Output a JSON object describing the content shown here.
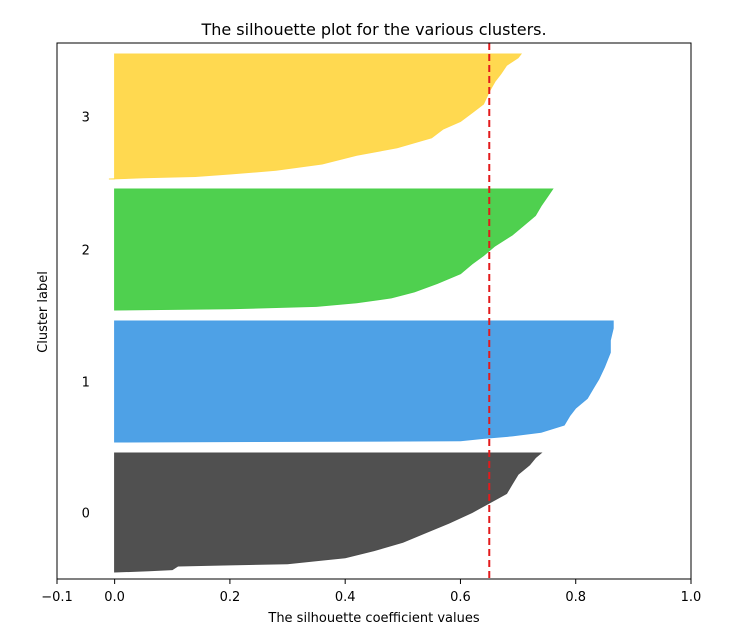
{
  "chart_data": {
    "type": "area",
    "title": "The silhouette plot for the various clusters.",
    "xlabel": "The silhouette coefficient values",
    "ylabel": "Cluster label",
    "xlim": [
      -0.1,
      1.0
    ],
    "xticks": [
      -0.1,
      0.0,
      0.2,
      0.4,
      0.6,
      0.8,
      1.0
    ],
    "xtick_labels": [
      "−0.1",
      "0.0",
      "0.2",
      "0.4",
      "0.6",
      "0.8",
      "1.0"
    ],
    "average_silhouette_score": 0.65,
    "average_line_color": "#e31a1c",
    "grid": false,
    "clusters": [
      {
        "label": "0",
        "color": "#4d4d4d",
        "profile": [
          [
            0.0,
            0.0
          ],
          [
            0.06,
            0.01
          ],
          [
            0.1,
            0.02
          ],
          [
            0.11,
            0.05
          ],
          [
            0.2,
            0.06
          ],
          [
            0.3,
            0.07
          ],
          [
            0.36,
            0.1
          ],
          [
            0.4,
            0.12
          ],
          [
            0.45,
            0.18
          ],
          [
            0.5,
            0.25
          ],
          [
            0.54,
            0.33
          ],
          [
            0.58,
            0.41
          ],
          [
            0.62,
            0.5
          ],
          [
            0.65,
            0.58
          ],
          [
            0.68,
            0.66
          ],
          [
            0.69,
            0.74
          ],
          [
            0.7,
            0.82
          ],
          [
            0.72,
            0.9
          ],
          [
            0.73,
            0.96
          ],
          [
            0.74,
            1.0
          ]
        ]
      },
      {
        "label": "1",
        "color": "#4a9fe6",
        "profile": [
          [
            0.0,
            0.0
          ],
          [
            0.6,
            0.01
          ],
          [
            0.64,
            0.03
          ],
          [
            0.69,
            0.05
          ],
          [
            0.74,
            0.08
          ],
          [
            0.78,
            0.14
          ],
          [
            0.79,
            0.22
          ],
          [
            0.8,
            0.28
          ],
          [
            0.82,
            0.36
          ],
          [
            0.83,
            0.44
          ],
          [
            0.84,
            0.52
          ],
          [
            0.85,
            0.62
          ],
          [
            0.86,
            0.74
          ],
          [
            0.86,
            0.84
          ],
          [
            0.865,
            0.94
          ],
          [
            0.865,
            1.0
          ]
        ]
      },
      {
        "label": "2",
        "color": "#4bcf4b",
        "profile": [
          [
            0.0,
            0.0
          ],
          [
            0.2,
            0.01
          ],
          [
            0.35,
            0.03
          ],
          [
            0.42,
            0.06
          ],
          [
            0.48,
            0.1
          ],
          [
            0.52,
            0.15
          ],
          [
            0.56,
            0.22
          ],
          [
            0.6,
            0.3
          ],
          [
            0.62,
            0.38
          ],
          [
            0.64,
            0.45
          ],
          [
            0.66,
            0.53
          ],
          [
            0.69,
            0.62
          ],
          [
            0.71,
            0.7
          ],
          [
            0.73,
            0.78
          ],
          [
            0.74,
            0.86
          ],
          [
            0.75,
            0.93
          ],
          [
            0.76,
            1.0
          ]
        ]
      },
      {
        "label": "3",
        "color": "#ffd84d",
        "profile": [
          [
            -0.01,
            0.0
          ],
          [
            0.05,
            0.01
          ],
          [
            0.14,
            0.02
          ],
          [
            0.2,
            0.04
          ],
          [
            0.28,
            0.07
          ],
          [
            0.36,
            0.12
          ],
          [
            0.42,
            0.19
          ],
          [
            0.49,
            0.25
          ],
          [
            0.55,
            0.33
          ],
          [
            0.57,
            0.4
          ],
          [
            0.6,
            0.46
          ],
          [
            0.62,
            0.53
          ],
          [
            0.64,
            0.6
          ],
          [
            0.65,
            0.7
          ],
          [
            0.66,
            0.78
          ],
          [
            0.67,
            0.84
          ],
          [
            0.68,
            0.91
          ],
          [
            0.7,
            0.97
          ],
          [
            0.705,
            1.0
          ]
        ]
      }
    ]
  }
}
